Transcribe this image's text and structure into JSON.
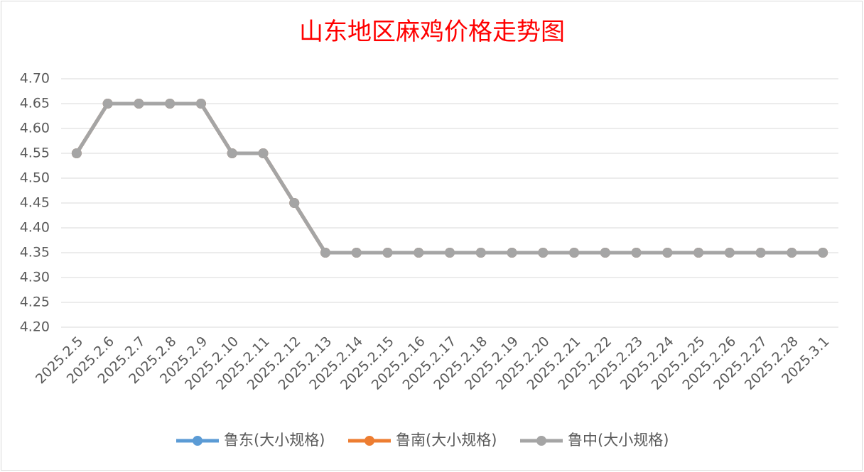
{
  "chart_data": {
    "type": "line",
    "title": "山东地区麻鸡价格走势图",
    "categories": [
      "2025.2.5",
      "2025.2.6",
      "2025.2.7",
      "2025.2.8",
      "2025.2.9",
      "2025.2.10",
      "2025.2.11",
      "2025.2.12",
      "2025.2.13",
      "2025.2.14",
      "2025.2.15",
      "2025.2.16",
      "2025.2.17",
      "2025.2.18",
      "2025.2.19",
      "2025.2.20",
      "2025.2.21",
      "2025.2.22",
      "2025.2.23",
      "2025.2.24",
      "2025.2.25",
      "2025.2.26",
      "2025.2.27",
      "2025.2.28",
      "2025.3.1"
    ],
    "series": [
      {
        "name": "鲁东(大小规格)",
        "color": "#5b9bd5",
        "values": [
          4.55,
          4.65,
          4.65,
          4.65,
          4.65,
          4.55,
          4.55,
          4.45,
          4.35,
          4.35,
          4.35,
          4.35,
          4.35,
          4.35,
          4.35,
          4.35,
          4.35,
          4.35,
          4.35,
          4.35,
          4.35,
          4.35,
          4.35,
          4.35,
          4.35
        ]
      },
      {
        "name": "鲁南(大小规格)",
        "color": "#ed7d31",
        "values": [
          4.55,
          4.65,
          4.65,
          4.65,
          4.65,
          4.55,
          4.55,
          4.45,
          4.35,
          4.35,
          4.35,
          4.35,
          4.35,
          4.35,
          4.35,
          4.35,
          4.35,
          4.35,
          4.35,
          4.35,
          4.35,
          4.35,
          4.35,
          4.35,
          4.35
        ]
      },
      {
        "name": "鲁中(大小规格)",
        "color": "#a5a5a5",
        "values": [
          4.55,
          4.65,
          4.65,
          4.65,
          4.65,
          4.55,
          4.55,
          4.45,
          4.35,
          4.35,
          4.35,
          4.35,
          4.35,
          4.35,
          4.35,
          4.35,
          4.35,
          4.35,
          4.35,
          4.35,
          4.35,
          4.35,
          4.35,
          4.35,
          4.35
        ]
      }
    ],
    "ylim": [
      4.2,
      4.7
    ],
    "yticks": [
      {
        "value": 4.2,
        "label": "4.20"
      },
      {
        "value": 4.25,
        "label": "4.25"
      },
      {
        "value": 4.3,
        "label": "4.30"
      },
      {
        "value": 4.35,
        "label": "4.35"
      },
      {
        "value": 4.4,
        "label": "4.40"
      },
      {
        "value": 4.45,
        "label": "4.45"
      },
      {
        "value": 4.5,
        "label": "4.50"
      },
      {
        "value": 4.55,
        "label": "4.55"
      },
      {
        "value": 4.6,
        "label": "4.60"
      },
      {
        "value": 4.65,
        "label": "4.65"
      },
      {
        "value": 4.7,
        "label": "4.70"
      }
    ],
    "grid": true,
    "legend": "bottom"
  }
}
